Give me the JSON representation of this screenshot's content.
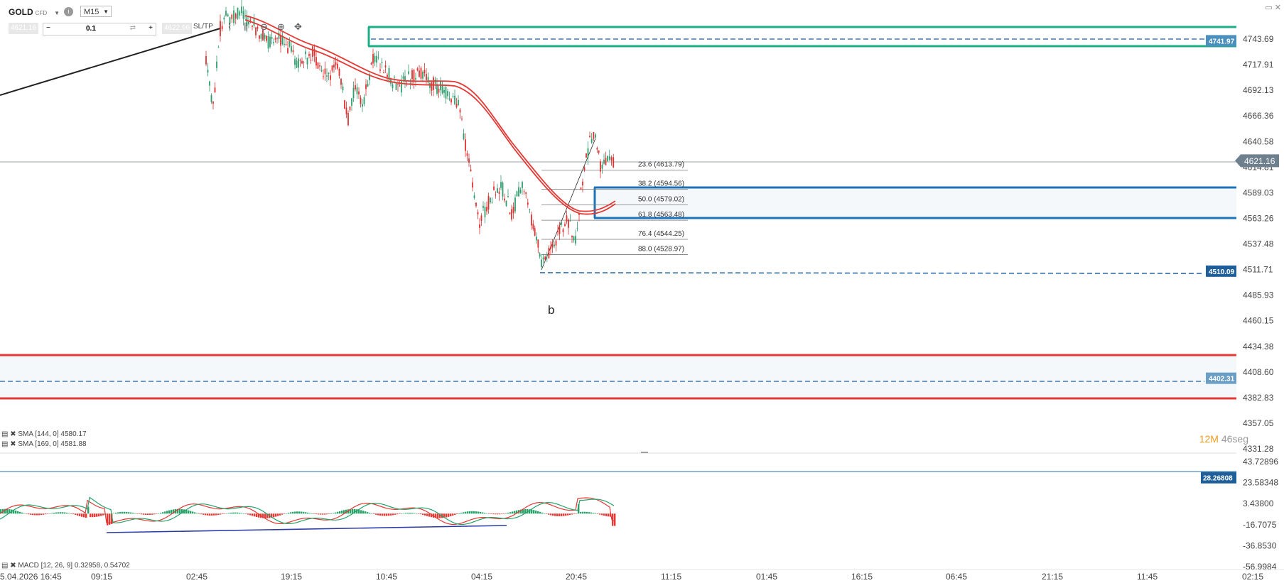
{
  "header": {
    "symbol": "GOLD",
    "symbol_type": "CFD",
    "timeframe": "M15",
    "bid": "4621.16",
    "ask": "4622.96",
    "quantity": "0.1",
    "sltp_label": "SL/TP"
  },
  "colors": {
    "up_candle": "#2f9e6e",
    "down_candle": "#e03030",
    "sma": "#e53935",
    "supply_zone": "#1aaf85",
    "demand_zone": "#1e73b8",
    "support_band": "#e53935",
    "trendline": "#222222",
    "macd_up": "#26a269",
    "macd_down": "#e53935",
    "divergence_line": "#2a3aa8"
  },
  "indicators": {
    "sma1": "SMA [144, 0] 4580.17",
    "sma2": "SMA [169, 0] 4581.88",
    "macd": "MACD [12, 26, 9] 0.32958, 0.54702"
  },
  "timer": {
    "minutes": "12M",
    "seconds": "46seg"
  },
  "chart_data": {
    "type": "candlestick",
    "price_axis": {
      "ticks": [
        "4743.69",
        "4717.91",
        "4692.13",
        "4666.36",
        "4640.58",
        "4614.81",
        "4589.03",
        "4563.26",
        "4537.48",
        "4511.71",
        "4485.93",
        "4460.15",
        "4434.38",
        "4408.60",
        "4382.83",
        "4357.05",
        "4331.28"
      ],
      "range": [
        4320,
        4760
      ]
    },
    "price_tags": [
      {
        "label": "4741.97",
        "value": 4741.97,
        "style": "box",
        "color": "#4a8fbd"
      },
      {
        "label": "4621.16",
        "value": 4621.16,
        "style": "current",
        "color": "#6e7f8d"
      },
      {
        "label": "4510.09",
        "value": 4510.09,
        "style": "box",
        "color": "#1f5f99"
      },
      {
        "label": "4402.31",
        "value": 4402.31,
        "style": "box",
        "color": "#6a9ec4"
      }
    ],
    "time_axis": [
      "5.04.2026 16:45",
      "09:15",
      "02:45",
      "19:15",
      "10:45",
      "04:15",
      "20:45",
      "11:15",
      "01:45",
      "16:15",
      "06:45",
      "21:15",
      "11:45",
      "02:15"
    ],
    "fibonacci": [
      {
        "label": "23.6 (4613.79)",
        "price": 4613.79
      },
      {
        "label": "38.2 (4594.56)",
        "price": 4594.56
      },
      {
        "label": "50.0 (4579.02)",
        "price": 4579.02
      },
      {
        "label": "61.8 (4563.48)",
        "price": 4563.48
      },
      {
        "label": "76.4 (4544.25)",
        "price": 4544.25
      },
      {
        "label": "88.0 (4528.97)",
        "price": 4528.97
      }
    ],
    "zones": [
      {
        "name": "supply",
        "top": 4755,
        "bottom": 4733
      },
      {
        "name": "demand",
        "top": 4595,
        "bottom": 4564
      },
      {
        "name": "support",
        "top": 4430,
        "bottom": 4387
      }
    ],
    "annotation": "b",
    "macd_axis": {
      "ticks": [
        "43.72896",
        "23.58348",
        "3.43800",
        "-16.7075",
        "-36.8530",
        "-56.9984"
      ],
      "range": [
        -57,
        44
      ],
      "tag": "28.26808",
      "tag_value": 28.26808
    }
  }
}
